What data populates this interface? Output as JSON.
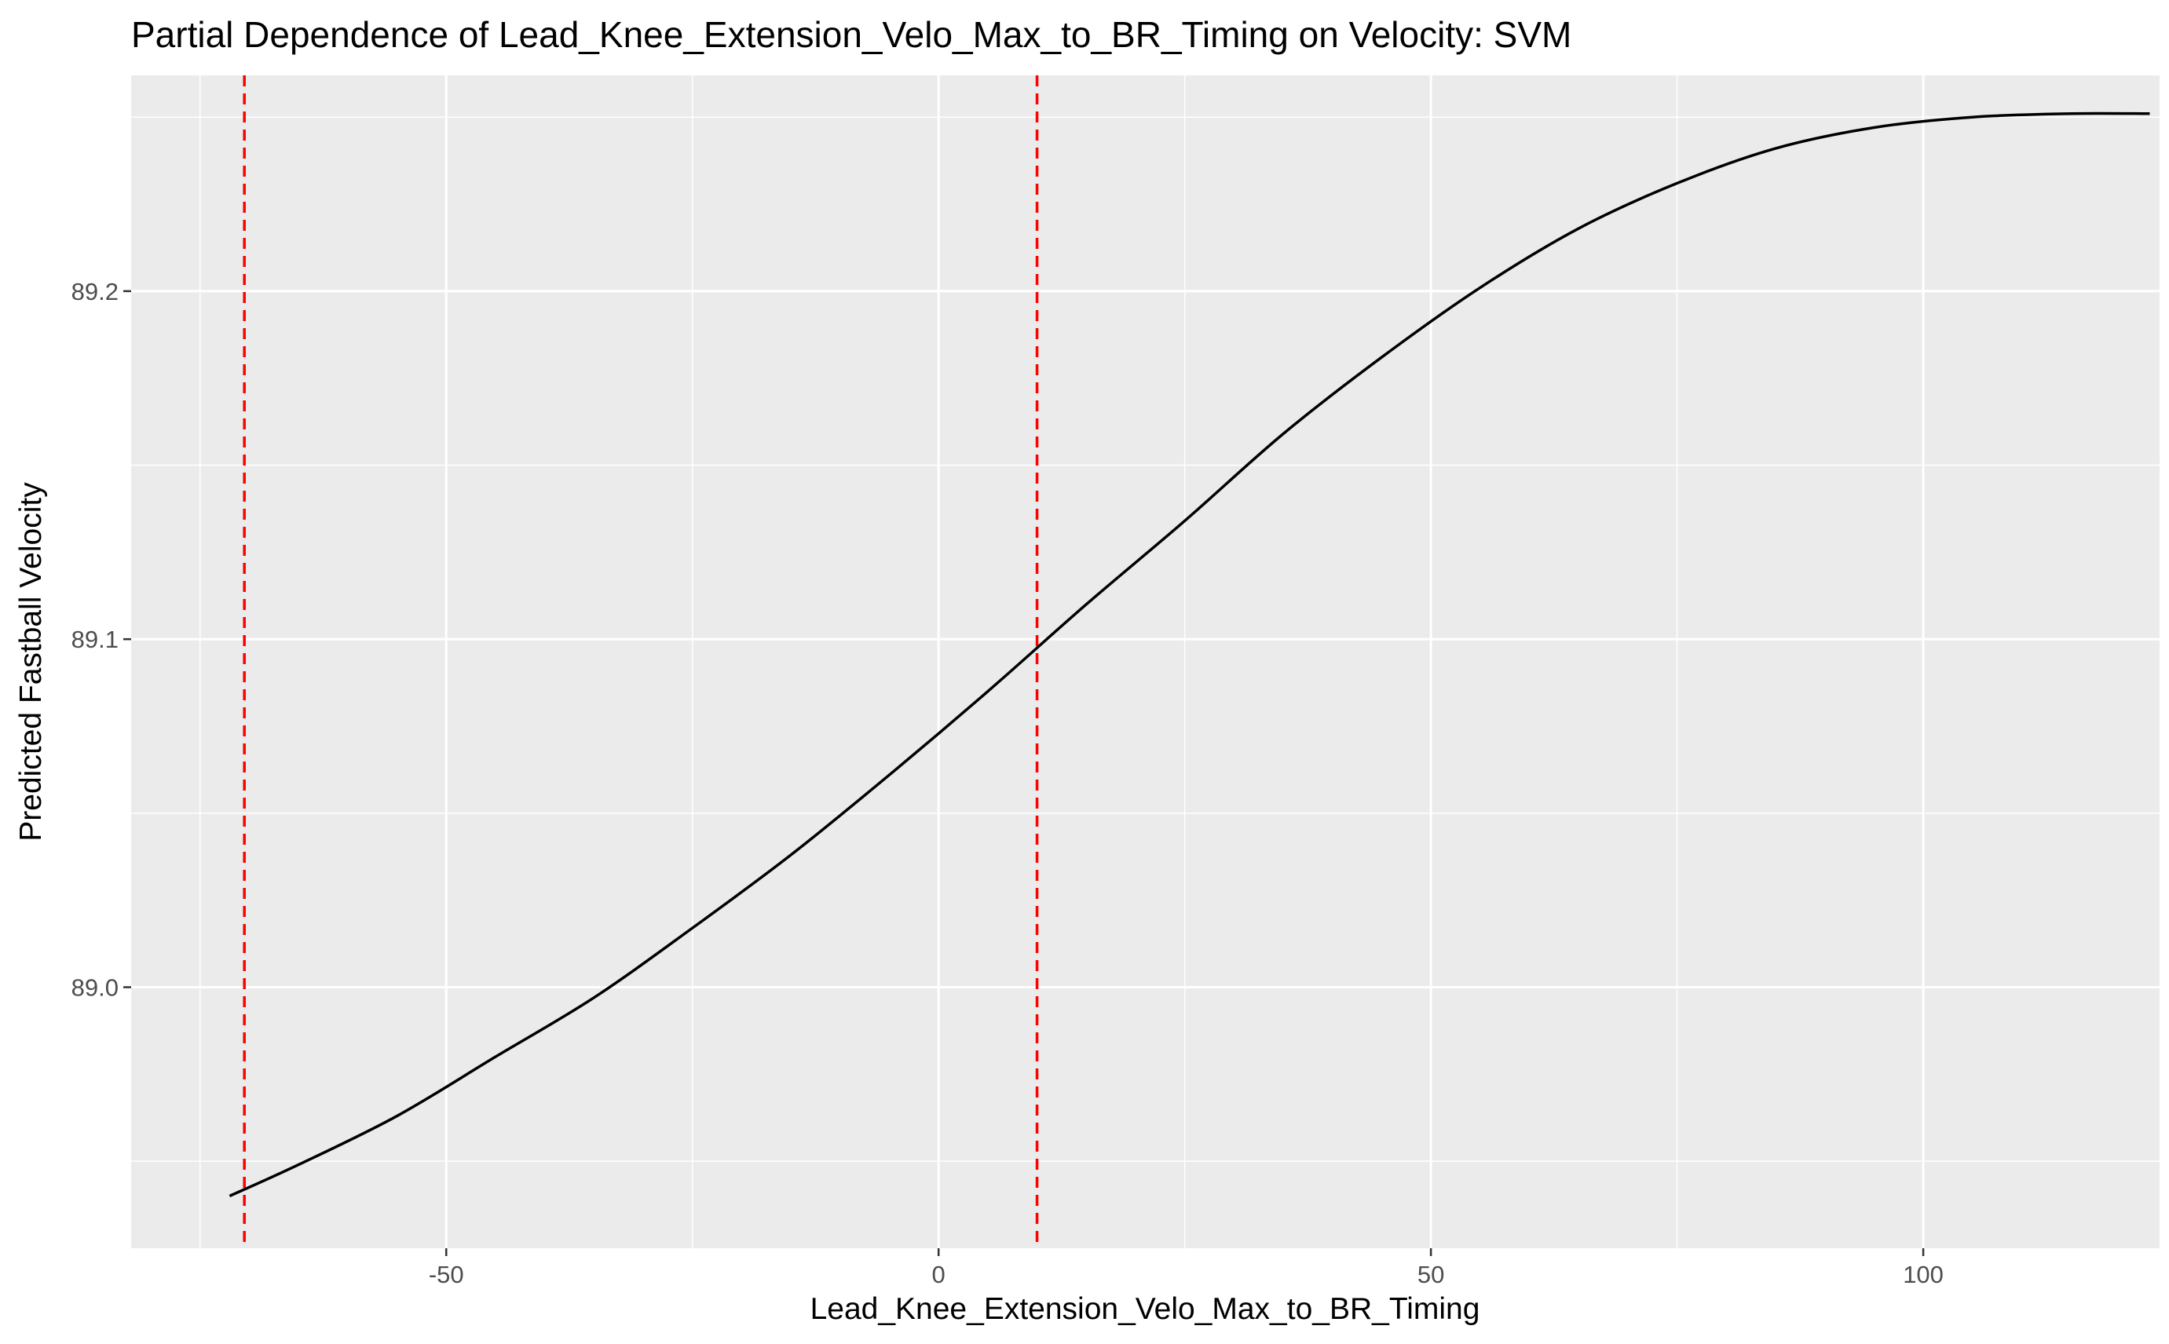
{
  "chart_data": {
    "type": "line",
    "title": "Partial Dependence of Lead_Knee_Extension_Velo_Max_to_BR_Timing on Velocity: SVM",
    "xlabel": "Lead_Knee_Extension_Velo_Max_to_BR_Timing",
    "ylabel": "Predicted Fastball Velocity",
    "xlim": [
      -82,
      124
    ],
    "ylim": [
      88.925,
      89.262
    ],
    "x_ticks": [
      -50,
      0,
      50,
      100
    ],
    "x_tick_labels": [
      "-50",
      "0",
      "50",
      "100"
    ],
    "y_ticks": [
      89.0,
      89.1,
      89.2
    ],
    "y_tick_labels": [
      "89.0",
      "89.1",
      "89.2"
    ],
    "grid": true,
    "line_color": "#000000",
    "reference_line_color": "#ff0000",
    "reference_lines_x": [
      -70.5,
      10
    ],
    "series": [
      {
        "x": [
          -72,
          -65,
          -55,
          -45,
          -35,
          -25,
          -15,
          -5,
          5,
          15,
          25,
          35,
          45,
          55,
          65,
          75,
          85,
          95,
          105,
          115,
          123
        ],
        "y": [
          88.94,
          88.949,
          88.963,
          88.98,
          88.997,
          89.017,
          89.038,
          89.061,
          89.085,
          89.11,
          89.134,
          89.159,
          89.181,
          89.201,
          89.218,
          89.231,
          89.241,
          89.247,
          89.25,
          89.251,
          89.251
        ]
      }
    ]
  }
}
